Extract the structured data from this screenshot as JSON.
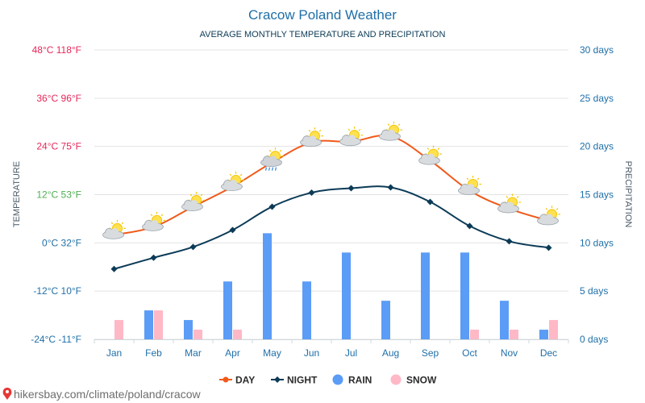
{
  "chart_data": {
    "type": "line",
    "title": "Cracow Poland Weather",
    "subtitle": "AVERAGE MONTHLY TEMPERATURE AND PRECIPITATION",
    "ylabel_left": "TEMPERATURE",
    "ylabel_right": "PRECIPITATION",
    "categories": [
      "Jan",
      "Feb",
      "Mar",
      "Apr",
      "May",
      "Jun",
      "Jul",
      "Aug",
      "Sep",
      "Oct",
      "Nov",
      "Dec"
    ],
    "temp_ylim": [
      -24,
      48
    ],
    "temp_ticks": [
      {
        "value": 48,
        "label": "48°C 118°F",
        "color": "#e8265a"
      },
      {
        "value": 36,
        "label": "36°C 96°F",
        "color": "#e8265a"
      },
      {
        "value": 24,
        "label": "24°C 75°F",
        "color": "#e8265a"
      },
      {
        "value": 12,
        "label": "12°C 53°F",
        "color": "#4caf50"
      },
      {
        "value": 0,
        "label": "0°C 32°F",
        "color": "#1f6fa8"
      },
      {
        "value": -12,
        "label": "-12°C 10°F",
        "color": "#1f6fa8"
      },
      {
        "value": -24,
        "label": "-24°C -11°F",
        "color": "#1f6fa8"
      }
    ],
    "precip_ylim": [
      0,
      30
    ],
    "precip_ticks": [
      {
        "value": 30,
        "label": "30 days"
      },
      {
        "value": 25,
        "label": "25 days"
      },
      {
        "value": 20,
        "label": "20 days"
      },
      {
        "value": 15,
        "label": "15 days"
      },
      {
        "value": 10,
        "label": "10 days"
      },
      {
        "value": 5,
        "label": "5 days"
      },
      {
        "value": 0,
        "label": "0 days"
      }
    ],
    "series": [
      {
        "name": "DAY",
        "kind": "line",
        "axis": "temp",
        "color": "#f05a1a",
        "values": [
          2,
          4,
          9,
          14,
          20,
          25,
          25.2,
          26.5,
          20.5,
          13,
          8.5,
          5.5
        ]
      },
      {
        "name": "NIGHT",
        "kind": "line",
        "axis": "temp",
        "color": "#0c3b57",
        "values": [
          -6.5,
          -3.7,
          -1,
          3.2,
          9,
          12.5,
          13.6,
          13.8,
          10.2,
          4.2,
          0.4,
          -1.2
        ]
      },
      {
        "name": "RAIN",
        "kind": "bar",
        "axis": "precip",
        "color": "#5b9cf6",
        "values": [
          0,
          3,
          2,
          6,
          11,
          6,
          9,
          4,
          9,
          9,
          4,
          1
        ]
      },
      {
        "name": "SNOW",
        "kind": "bar",
        "axis": "precip",
        "color": "#ffb8c6",
        "values": [
          2,
          3,
          1,
          1,
          0,
          0,
          0,
          0,
          0,
          1,
          1,
          2
        ]
      }
    ],
    "weather_icons": [
      "partly-cloudy-icon",
      "partly-cloudy-icon",
      "partly-cloudy-icon",
      "partly-cloudy-icon",
      "rain-cloud-icon",
      "partly-cloudy-icon",
      "partly-cloudy-icon",
      "partly-cloudy-icon",
      "partly-cloudy-icon",
      "partly-cloudy-icon",
      "partly-cloudy-icon",
      "partly-cloudy-icon"
    ],
    "legend": [
      {
        "label": "DAY",
        "color": "#f05a1a",
        "marker": "line-dot"
      },
      {
        "label": "NIGHT",
        "color": "#0c3b57",
        "marker": "line-diamond"
      },
      {
        "label": "RAIN",
        "color": "#5b9cf6",
        "marker": "circle"
      },
      {
        "label": "SNOW",
        "color": "#ffb8c6",
        "marker": "circle"
      }
    ],
    "legend_position": "bottom-center",
    "grid": true
  },
  "footer": {
    "pin_icon": "map-pin-icon",
    "url_text": "hikersbay.com/climate/poland/cracow"
  },
  "colors": {
    "title": "#1f6fa8",
    "subtitle": "#0c3b57",
    "axis_text": "#1f6fa8",
    "side_label": "#4a5a66",
    "grid": "#e3e3e3",
    "footer_text": "#6e6e6e",
    "pin": "#e53935"
  }
}
